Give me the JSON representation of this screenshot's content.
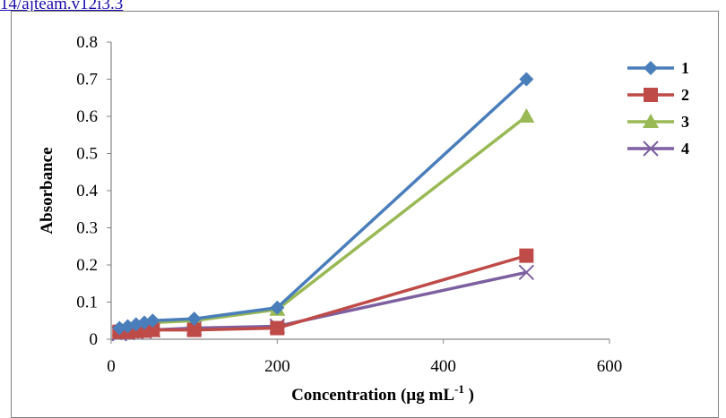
{
  "header": {
    "link_text": "14/ajteam.v12i3.3"
  },
  "chart_data": {
    "type": "line",
    "xlabel": "Concentration (µg mL",
    "xlabel_sup": "-1",
    "xlabel_close": ")",
    "ylabel": "Absorbance",
    "xlim": [
      0,
      600
    ],
    "ylim": [
      0,
      0.8
    ],
    "xticks": [
      0,
      200,
      400,
      600
    ],
    "yticks": [
      0,
      0.1,
      0.2,
      0.3,
      0.4,
      0.5,
      0.6,
      0.7,
      0.8
    ],
    "ytick_labels": [
      "0",
      "0.1",
      "0.2",
      "0.3",
      "0.4",
      "0.5",
      "0.6",
      "0.7",
      "0.8"
    ],
    "grid": false,
    "legend_position": "top-right",
    "x": [
      10,
      20,
      30,
      40,
      50,
      100,
      200,
      500
    ],
    "series": [
      {
        "name": "1",
        "color": "#4a7ebb",
        "marker": "diamond",
        "values": [
          0.03,
          0.035,
          0.04,
          0.045,
          0.05,
          0.055,
          0.085,
          0.7
        ]
      },
      {
        "name": "2",
        "color": "#be4b48",
        "marker": "square",
        "values": [
          0.02,
          0.02,
          0.022,
          0.023,
          0.025,
          0.025,
          0.03,
          0.225
        ]
      },
      {
        "name": "3",
        "color": "#98b954",
        "marker": "triangle",
        "values": [
          0.025,
          0.03,
          0.035,
          0.04,
          0.045,
          0.05,
          0.08,
          0.6
        ]
      },
      {
        "name": "4",
        "color": "#7d60a0",
        "marker": "x",
        "values": [
          0.015,
          0.018,
          0.02,
          0.022,
          0.025,
          0.03,
          0.035,
          0.18
        ]
      }
    ]
  }
}
